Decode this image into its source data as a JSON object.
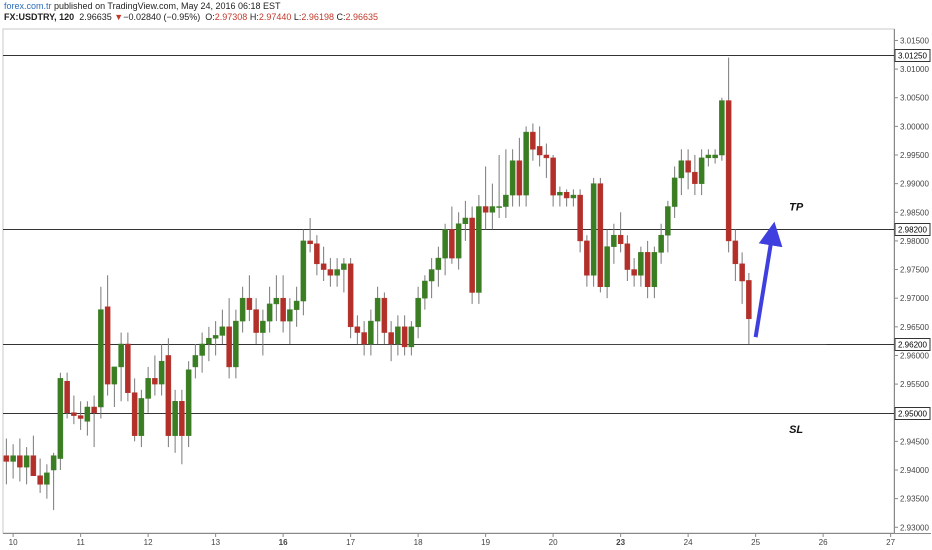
{
  "header": {
    "line1_brand": "forex.com.tr",
    "line1_rest": "published on TradingView.com, May 24, 2016 06:18 EST",
    "symbol": "FX:USDTRY, 120",
    "last": "2.96635",
    "change_arrow": "▼",
    "change": "−0.02840 (−0.95%)",
    "o_label": "O:",
    "o": "2.97308",
    "h_label": "H:",
    "h": "2.97440",
    "l_label": "L:",
    "l": "2.96198",
    "c_label": "C:",
    "c": "2.96635"
  },
  "colors": {
    "up": "#3a7d22",
    "down": "#b3302a",
    "wick": "#7a7a7a",
    "arrow": "#3f3fe0",
    "axis": "#555555"
  },
  "annotations": {
    "tp_label": "TP",
    "sl_label": "SL"
  },
  "chart_data": {
    "type": "candlestick",
    "y_ticks": [
      "3.01500",
      "3.01000",
      "3.00500",
      "3.00000",
      "2.99500",
      "2.99000",
      "2.98500",
      "2.98000",
      "2.97500",
      "2.97000",
      "2.96500",
      "2.96000",
      "2.95500",
      "2.95000",
      "2.94500",
      "2.94000",
      "2.93500",
      "2.93000"
    ],
    "ylim": [
      2.929,
      3.017
    ],
    "x_ticks": [
      {
        "label": "10",
        "day": 10
      },
      {
        "label": "11",
        "day": 11
      },
      {
        "label": "12",
        "day": 12
      },
      {
        "label": "13",
        "day": 13
      },
      {
        "label": "16",
        "day": 14,
        "bold": true
      },
      {
        "label": "17",
        "day": 15
      },
      {
        "label": "18",
        "day": 16
      },
      {
        "label": "19",
        "day": 17
      },
      {
        "label": "20",
        "day": 18
      },
      {
        "label": "23",
        "day": 19,
        "bold": true
      },
      {
        "label": "24",
        "day": 20
      },
      {
        "label": "25",
        "day": 21
      },
      {
        "label": "26",
        "day": 22
      },
      {
        "label": "27",
        "day": 23
      }
    ],
    "xlim": [
      9.85,
      23.05
    ],
    "levels": [
      {
        "value": 3.0125,
        "label": "3.01250",
        "name": "top-level"
      },
      {
        "value": 2.982,
        "label": "2.98200",
        "name": "tp-level"
      },
      {
        "value": 2.962,
        "label": "2.96200",
        "name": "support-level"
      },
      {
        "value": 2.95,
        "label": "2.95000",
        "name": "sl-level"
      }
    ],
    "support_segment": {
      "start": 15.1,
      "end": 22.05,
      "value": 2.962
    },
    "arrow": {
      "from_day": 21.0,
      "from_value": 2.9632,
      "to_day": 21.25,
      "to_value": 2.9813
    },
    "tp_pos": {
      "day": 21.6,
      "value": 2.9853
    },
    "sl_pos": {
      "day": 21.6,
      "value": 2.9465
    },
    "candles": [
      {
        "t": 9.9,
        "o": 2.9425,
        "h": 2.9455,
        "l": 2.9375,
        "c": 2.9415
      },
      {
        "t": 10.0,
        "o": 2.9415,
        "h": 2.9445,
        "l": 2.9385,
        "c": 2.9425
      },
      {
        "t": 10.1,
        "o": 2.9425,
        "h": 2.9455,
        "l": 2.938,
        "c": 2.9405
      },
      {
        "t": 10.2,
        "o": 2.9405,
        "h": 2.944,
        "l": 2.9375,
        "c": 2.9425
      },
      {
        "t": 10.3,
        "o": 2.9425,
        "h": 2.946,
        "l": 2.939,
        "c": 2.939
      },
      {
        "t": 10.4,
        "o": 2.939,
        "h": 2.942,
        "l": 2.936,
        "c": 2.9375
      },
      {
        "t": 10.5,
        "o": 2.9375,
        "h": 2.941,
        "l": 2.935,
        "c": 2.9395
      },
      {
        "t": 10.6,
        "o": 2.94,
        "h": 2.943,
        "l": 2.933,
        "c": 2.9425
      },
      {
        "t": 10.7,
        "o": 2.942,
        "h": 2.957,
        "l": 2.94,
        "c": 2.956
      },
      {
        "t": 10.8,
        "o": 2.9555,
        "h": 2.957,
        "l": 2.949,
        "c": 2.95
      },
      {
        "t": 10.9,
        "o": 2.95,
        "h": 2.953,
        "l": 2.948,
        "c": 2.9495
      },
      {
        "t": 11.0,
        "o": 2.9495,
        "h": 2.952,
        "l": 2.947,
        "c": 2.949
      },
      {
        "t": 11.1,
        "o": 2.9485,
        "h": 2.952,
        "l": 2.946,
        "c": 2.951
      },
      {
        "t": 11.2,
        "o": 2.951,
        "h": 2.953,
        "l": 2.944,
        "c": 2.95
      },
      {
        "t": 11.3,
        "o": 2.951,
        "h": 2.972,
        "l": 2.949,
        "c": 2.968
      },
      {
        "t": 11.4,
        "o": 2.9685,
        "h": 2.974,
        "l": 2.953,
        "c": 2.955
      },
      {
        "t": 11.5,
        "o": 2.955,
        "h": 2.958,
        "l": 2.951,
        "c": 2.958
      },
      {
        "t": 11.6,
        "o": 2.958,
        "h": 2.964,
        "l": 2.952,
        "c": 2.962
      },
      {
        "t": 11.7,
        "o": 2.962,
        "h": 2.964,
        "l": 2.952,
        "c": 2.9535
      },
      {
        "t": 11.8,
        "o": 2.9535,
        "h": 2.956,
        "l": 2.945,
        "c": 2.946
      },
      {
        "t": 11.9,
        "o": 2.946,
        "h": 2.954,
        "l": 2.944,
        "c": 2.9525
      },
      {
        "t": 12.0,
        "o": 2.9525,
        "h": 2.958,
        "l": 2.95,
        "c": 2.956
      },
      {
        "t": 12.1,
        "o": 2.956,
        "h": 2.96,
        "l": 2.953,
        "c": 2.955
      },
      {
        "t": 12.2,
        "o": 2.955,
        "h": 2.962,
        "l": 2.953,
        "c": 2.959
      },
      {
        "t": 12.3,
        "o": 2.96,
        "h": 2.963,
        "l": 2.944,
        "c": 2.946
      },
      {
        "t": 12.4,
        "o": 2.946,
        "h": 2.954,
        "l": 2.943,
        "c": 2.952
      },
      {
        "t": 12.5,
        "o": 2.952,
        "h": 2.954,
        "l": 2.941,
        "c": 2.946
      },
      {
        "t": 12.6,
        "o": 2.946,
        "h": 2.959,
        "l": 2.944,
        "c": 2.9575
      },
      {
        "t": 12.7,
        "o": 2.958,
        "h": 2.962,
        "l": 2.956,
        "c": 2.96
      },
      {
        "t": 12.8,
        "o": 2.96,
        "h": 2.964,
        "l": 2.957,
        "c": 2.962
      },
      {
        "t": 12.9,
        "o": 2.962,
        "h": 2.965,
        "l": 2.959,
        "c": 2.963
      },
      {
        "t": 13.0,
        "o": 2.963,
        "h": 2.966,
        "l": 2.96,
        "c": 2.9635
      },
      {
        "t": 13.1,
        "o": 2.9635,
        "h": 2.968,
        "l": 2.962,
        "c": 2.965
      },
      {
        "t": 13.2,
        "o": 2.965,
        "h": 2.97,
        "l": 2.956,
        "c": 2.958
      },
      {
        "t": 13.3,
        "o": 2.958,
        "h": 2.968,
        "l": 2.956,
        "c": 2.966
      },
      {
        "t": 13.4,
        "o": 2.966,
        "h": 2.972,
        "l": 2.964,
        "c": 2.97
      },
      {
        "t": 13.5,
        "o": 2.97,
        "h": 2.974,
        "l": 2.966,
        "c": 2.968
      },
      {
        "t": 13.6,
        "o": 2.968,
        "h": 2.97,
        "l": 2.962,
        "c": 2.964
      },
      {
        "t": 13.7,
        "o": 2.964,
        "h": 2.968,
        "l": 2.96,
        "c": 2.966
      },
      {
        "t": 13.8,
        "o": 2.966,
        "h": 2.972,
        "l": 2.964,
        "c": 2.969
      },
      {
        "t": 13.9,
        "o": 2.969,
        "h": 2.974,
        "l": 2.966,
        "c": 2.97
      },
      {
        "t": 14.0,
        "o": 2.97,
        "h": 2.974,
        "l": 2.964,
        "c": 2.966
      },
      {
        "t": 14.1,
        "o": 2.966,
        "h": 2.97,
        "l": 2.962,
        "c": 2.968
      },
      {
        "t": 14.2,
        "o": 2.968,
        "h": 2.972,
        "l": 2.965,
        "c": 2.9695
      },
      {
        "t": 14.3,
        "o": 2.9695,
        "h": 2.982,
        "l": 2.967,
        "c": 2.98
      },
      {
        "t": 14.4,
        "o": 2.98,
        "h": 2.984,
        "l": 2.978,
        "c": 2.9795
      },
      {
        "t": 14.5,
        "o": 2.9795,
        "h": 2.981,
        "l": 2.974,
        "c": 2.976
      },
      {
        "t": 14.6,
        "o": 2.976,
        "h": 2.979,
        "l": 2.973,
        "c": 2.975
      },
      {
        "t": 14.7,
        "o": 2.975,
        "h": 2.977,
        "l": 2.972,
        "c": 2.974
      },
      {
        "t": 14.8,
        "o": 2.974,
        "h": 2.977,
        "l": 2.972,
        "c": 2.975
      },
      {
        "t": 14.9,
        "o": 2.975,
        "h": 2.977,
        "l": 2.971,
        "c": 2.976
      },
      {
        "t": 15.0,
        "o": 2.976,
        "h": 2.977,
        "l": 2.963,
        "c": 2.965
      },
      {
        "t": 15.1,
        "o": 2.965,
        "h": 2.967,
        "l": 2.962,
        "c": 2.964
      },
      {
        "t": 15.2,
        "o": 2.964,
        "h": 2.966,
        "l": 2.96,
        "c": 2.962
      },
      {
        "t": 15.3,
        "o": 2.962,
        "h": 2.968,
        "l": 2.96,
        "c": 2.966
      },
      {
        "t": 15.4,
        "o": 2.966,
        "h": 2.972,
        "l": 2.962,
        "c": 2.97
      },
      {
        "t": 15.5,
        "o": 2.97,
        "h": 2.971,
        "l": 2.962,
        "c": 2.964
      },
      {
        "t": 15.6,
        "o": 2.964,
        "h": 2.966,
        "l": 2.959,
        "c": 2.962
      },
      {
        "t": 15.7,
        "o": 2.962,
        "h": 2.967,
        "l": 2.96,
        "c": 2.965
      },
      {
        "t": 15.8,
        "o": 2.965,
        "h": 2.967,
        "l": 2.96,
        "c": 2.9615
      },
      {
        "t": 15.9,
        "o": 2.9615,
        "h": 2.966,
        "l": 2.96,
        "c": 2.965
      },
      {
        "t": 16.0,
        "o": 2.965,
        "h": 2.972,
        "l": 2.963,
        "c": 2.97
      },
      {
        "t": 16.1,
        "o": 2.97,
        "h": 2.974,
        "l": 2.968,
        "c": 2.973
      },
      {
        "t": 16.2,
        "o": 2.973,
        "h": 2.977,
        "l": 2.97,
        "c": 2.975
      },
      {
        "t": 16.3,
        "o": 2.975,
        "h": 2.979,
        "l": 2.972,
        "c": 2.977
      },
      {
        "t": 16.4,
        "o": 2.977,
        "h": 2.983,
        "l": 2.974,
        "c": 2.982
      },
      {
        "t": 16.5,
        "o": 2.982,
        "h": 2.986,
        "l": 2.976,
        "c": 2.977
      },
      {
        "t": 16.6,
        "o": 2.977,
        "h": 2.985,
        "l": 2.975,
        "c": 2.983
      },
      {
        "t": 16.7,
        "o": 2.983,
        "h": 2.987,
        "l": 2.98,
        "c": 2.984
      },
      {
        "t": 16.8,
        "o": 2.984,
        "h": 2.986,
        "l": 2.969,
        "c": 2.971
      },
      {
        "t": 16.9,
        "o": 2.971,
        "h": 2.988,
        "l": 2.969,
        "c": 2.986
      },
      {
        "t": 17.0,
        "o": 2.986,
        "h": 2.993,
        "l": 2.982,
        "c": 2.985
      },
      {
        "t": 17.1,
        "o": 2.985,
        "h": 2.99,
        "l": 2.982,
        "c": 2.986
      },
      {
        "t": 17.2,
        "o": 2.986,
        "h": 2.995,
        "l": 2.984,
        "c": 2.986
      },
      {
        "t": 17.3,
        "o": 2.986,
        "h": 2.996,
        "l": 2.984,
        "c": 2.988
      },
      {
        "t": 17.4,
        "o": 2.988,
        "h": 2.996,
        "l": 2.986,
        "c": 2.994
      },
      {
        "t": 17.5,
        "o": 2.994,
        "h": 2.998,
        "l": 2.986,
        "c": 2.988
      },
      {
        "t": 17.6,
        "o": 2.988,
        "h": 3.0,
        "l": 2.986,
        "c": 2.999
      },
      {
        "t": 17.7,
        "o": 2.999,
        "h": 3.0005,
        "l": 2.994,
        "c": 2.996
      },
      {
        "t": 17.8,
        "o": 2.9965,
        "h": 3.0,
        "l": 2.993,
        "c": 2.995
      },
      {
        "t": 17.9,
        "o": 2.995,
        "h": 2.997,
        "l": 2.991,
        "c": 2.9945
      },
      {
        "t": 18.0,
        "o": 2.9945,
        "h": 2.995,
        "l": 2.986,
        "c": 2.988
      },
      {
        "t": 18.1,
        "o": 2.988,
        "h": 2.9895,
        "l": 2.986,
        "c": 2.9885
      },
      {
        "t": 18.2,
        "o": 2.9885,
        "h": 2.989,
        "l": 2.986,
        "c": 2.9875
      },
      {
        "t": 18.3,
        "o": 2.9875,
        "h": 2.989,
        "l": 2.986,
        "c": 2.988
      },
      {
        "t": 18.4,
        "o": 2.988,
        "h": 2.989,
        "l": 2.978,
        "c": 2.98
      },
      {
        "t": 18.5,
        "o": 2.98,
        "h": 2.981,
        "l": 2.972,
        "c": 2.974
      },
      {
        "t": 18.6,
        "o": 2.974,
        "h": 2.991,
        "l": 2.972,
        "c": 2.99
      },
      {
        "t": 18.7,
        "o": 2.99,
        "h": 2.991,
        "l": 2.971,
        "c": 2.972
      },
      {
        "t": 18.8,
        "o": 2.972,
        "h": 2.982,
        "l": 2.97,
        "c": 2.979
      },
      {
        "t": 18.9,
        "o": 2.979,
        "h": 2.983,
        "l": 2.976,
        "c": 2.981
      },
      {
        "t": 19.0,
        "o": 2.981,
        "h": 2.985,
        "l": 2.978,
        "c": 2.9795
      },
      {
        "t": 19.1,
        "o": 2.9795,
        "h": 2.981,
        "l": 2.973,
        "c": 2.975
      },
      {
        "t": 19.2,
        "o": 2.975,
        "h": 2.977,
        "l": 2.972,
        "c": 2.974
      },
      {
        "t": 19.3,
        "o": 2.974,
        "h": 2.979,
        "l": 2.972,
        "c": 2.978
      },
      {
        "t": 19.4,
        "o": 2.978,
        "h": 2.98,
        "l": 2.97,
        "c": 2.972
      },
      {
        "t": 19.5,
        "o": 2.972,
        "h": 2.979,
        "l": 2.97,
        "c": 2.978
      },
      {
        "t": 19.6,
        "o": 2.978,
        "h": 2.983,
        "l": 2.976,
        "c": 2.981
      },
      {
        "t": 19.7,
        "o": 2.981,
        "h": 2.987,
        "l": 2.978,
        "c": 2.986
      },
      {
        "t": 19.8,
        "o": 2.986,
        "h": 2.993,
        "l": 2.984,
        "c": 2.991
      },
      {
        "t": 19.9,
        "o": 2.991,
        "h": 2.996,
        "l": 2.988,
        "c": 2.994
      },
      {
        "t": 20.0,
        "o": 2.994,
        "h": 2.996,
        "l": 2.989,
        "c": 2.992
      },
      {
        "t": 20.1,
        "o": 2.992,
        "h": 2.995,
        "l": 2.988,
        "c": 2.99
      },
      {
        "t": 20.2,
        "o": 2.99,
        "h": 2.996,
        "l": 2.988,
        "c": 2.9945
      },
      {
        "t": 20.3,
        "o": 2.9945,
        "h": 2.996,
        "l": 2.993,
        "c": 2.995
      },
      {
        "t": 20.4,
        "o": 2.9945,
        "h": 2.996,
        "l": 2.9935,
        "c": 2.995
      },
      {
        "t": 20.5,
        "o": 2.995,
        "h": 3.005,
        "l": 2.994,
        "c": 3.0045
      },
      {
        "t": 20.6,
        "o": 3.0045,
        "h": 3.012,
        "l": 2.978,
        "c": 2.98
      },
      {
        "t": 20.7,
        "o": 2.98,
        "h": 2.982,
        "l": 2.973,
        "c": 2.976
      },
      {
        "t": 20.8,
        "o": 2.976,
        "h": 2.978,
        "l": 2.969,
        "c": 2.973
      },
      {
        "t": 20.9,
        "o": 2.9731,
        "h": 2.9744,
        "l": 2.962,
        "c": 2.9664
      }
    ]
  }
}
